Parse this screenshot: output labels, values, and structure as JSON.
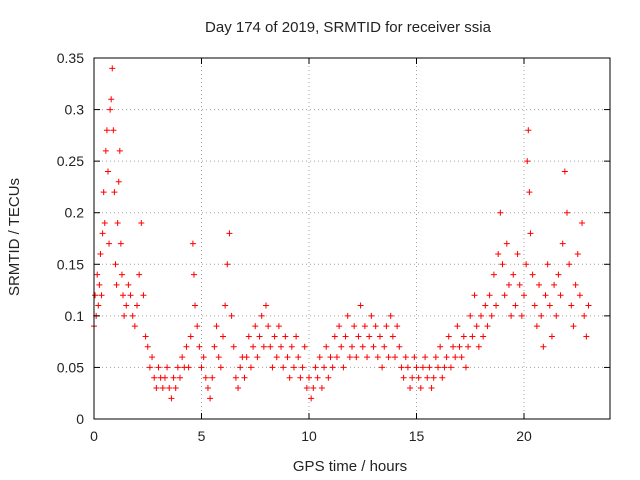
{
  "chart_data": {
    "type": "scatter",
    "title": "Day 174 of 2019, SRMTID for receiver ssia",
    "xlabel": "GPS time / hours",
    "ylabel": "SRMTID / TECUs",
    "xlim": [
      0,
      24
    ],
    "ylim": [
      0,
      0.35
    ],
    "grid": true,
    "marker": "plus",
    "x_ticks": [
      0,
      5,
      10,
      15,
      20
    ],
    "x_tick_labels": [
      "0",
      "5",
      "10",
      "15",
      "20"
    ],
    "y_ticks": [
      0,
      0.05,
      0.1,
      0.15,
      0.2,
      0.25,
      0.3,
      0.35
    ],
    "y_tick_labels": [
      "0",
      "0.05",
      "0.1",
      "0.15",
      "0.2",
      "0.25",
      "0.3",
      "0.35"
    ],
    "series": [
      {
        "name": "SRMTID",
        "color": "#ff0000",
        "points": [
          [
            0.0,
            0.09
          ],
          [
            0.05,
            0.12
          ],
          [
            0.1,
            0.1
          ],
          [
            0.15,
            0.14
          ],
          [
            0.2,
            0.11
          ],
          [
            0.25,
            0.13
          ],
          [
            0.3,
            0.16
          ],
          [
            0.35,
            0.12
          ],
          [
            0.4,
            0.18
          ],
          [
            0.45,
            0.22
          ],
          [
            0.5,
            0.19
          ],
          [
            0.55,
            0.26
          ],
          [
            0.6,
            0.28
          ],
          [
            0.65,
            0.24
          ],
          [
            0.7,
            0.17
          ],
          [
            0.75,
            0.3
          ],
          [
            0.8,
            0.31
          ],
          [
            0.85,
            0.34
          ],
          [
            0.9,
            0.28
          ],
          [
            0.95,
            0.22
          ],
          [
            1.0,
            0.15
          ],
          [
            1.05,
            0.13
          ],
          [
            1.1,
            0.19
          ],
          [
            1.15,
            0.23
          ],
          [
            1.2,
            0.26
          ],
          [
            1.25,
            0.17
          ],
          [
            1.3,
            0.14
          ],
          [
            1.35,
            0.12
          ],
          [
            1.4,
            0.1
          ],
          [
            1.5,
            0.11
          ],
          [
            1.6,
            0.13
          ],
          [
            1.7,
            0.12
          ],
          [
            1.8,
            0.1
          ],
          [
            1.9,
            0.09
          ],
          [
            2.0,
            0.11
          ],
          [
            2.1,
            0.14
          ],
          [
            2.2,
            0.19
          ],
          [
            2.3,
            0.12
          ],
          [
            2.4,
            0.08
          ],
          [
            2.5,
            0.07
          ],
          [
            2.6,
            0.05
          ],
          [
            2.7,
            0.06
          ],
          [
            2.8,
            0.04
          ],
          [
            2.9,
            0.03
          ],
          [
            3.0,
            0.05
          ],
          [
            3.1,
            0.04
          ],
          [
            3.2,
            0.03
          ],
          [
            3.3,
            0.04
          ],
          [
            3.4,
            0.05
          ],
          [
            3.5,
            0.03
          ],
          [
            3.6,
            0.02
          ],
          [
            3.7,
            0.04
          ],
          [
            3.8,
            0.03
          ],
          [
            3.9,
            0.05
          ],
          [
            4.0,
            0.04
          ],
          [
            4.1,
            0.06
          ],
          [
            4.2,
            0.05
          ],
          [
            4.3,
            0.07
          ],
          [
            4.4,
            0.05
          ],
          [
            4.5,
            0.08
          ],
          [
            4.6,
            0.17
          ],
          [
            4.65,
            0.14
          ],
          [
            4.7,
            0.11
          ],
          [
            4.8,
            0.09
          ],
          [
            4.9,
            0.07
          ],
          [
            5.0,
            0.05
          ],
          [
            5.1,
            0.06
          ],
          [
            5.2,
            0.04
          ],
          [
            5.3,
            0.03
          ],
          [
            5.4,
            0.02
          ],
          [
            5.5,
            0.04
          ],
          [
            5.6,
            0.07
          ],
          [
            5.7,
            0.09
          ],
          [
            5.8,
            0.06
          ],
          [
            5.9,
            0.05
          ],
          [
            6.0,
            0.08
          ],
          [
            6.1,
            0.11
          ],
          [
            6.2,
            0.15
          ],
          [
            6.3,
            0.18
          ],
          [
            6.4,
            0.1
          ],
          [
            6.5,
            0.07
          ],
          [
            6.6,
            0.04
          ],
          [
            6.7,
            0.03
          ],
          [
            6.8,
            0.05
          ],
          [
            6.9,
            0.06
          ],
          [
            7.0,
            0.04
          ],
          [
            7.1,
            0.06
          ],
          [
            7.2,
            0.08
          ],
          [
            7.3,
            0.05
          ],
          [
            7.4,
            0.07
          ],
          [
            7.5,
            0.09
          ],
          [
            7.6,
            0.06
          ],
          [
            7.7,
            0.08
          ],
          [
            7.8,
            0.1
          ],
          [
            7.9,
            0.07
          ],
          [
            8.0,
            0.11
          ],
          [
            8.1,
            0.09
          ],
          [
            8.2,
            0.07
          ],
          [
            8.3,
            0.05
          ],
          [
            8.4,
            0.08
          ],
          [
            8.5,
            0.06
          ],
          [
            8.6,
            0.09
          ],
          [
            8.7,
            0.07
          ],
          [
            8.8,
            0.05
          ],
          [
            8.9,
            0.08
          ],
          [
            9.0,
            0.06
          ],
          [
            9.1,
            0.04
          ],
          [
            9.2,
            0.07
          ],
          [
            9.3,
            0.05
          ],
          [
            9.4,
            0.08
          ],
          [
            9.5,
            0.06
          ],
          [
            9.6,
            0.04
          ],
          [
            9.7,
            0.05
          ],
          [
            9.8,
            0.07
          ],
          [
            9.9,
            0.03
          ],
          [
            10.0,
            0.04
          ],
          [
            10.1,
            0.02
          ],
          [
            10.2,
            0.03
          ],
          [
            10.3,
            0.05
          ],
          [
            10.4,
            0.04
          ],
          [
            10.5,
            0.06
          ],
          [
            10.6,
            0.03
          ],
          [
            10.7,
            0.05
          ],
          [
            10.8,
            0.07
          ],
          [
            10.9,
            0.04
          ],
          [
            11.0,
            0.06
          ],
          [
            11.1,
            0.05
          ],
          [
            11.2,
            0.08
          ],
          [
            11.3,
            0.06
          ],
          [
            11.4,
            0.09
          ],
          [
            11.5,
            0.07
          ],
          [
            11.6,
            0.05
          ],
          [
            11.7,
            0.08
          ],
          [
            11.8,
            0.1
          ],
          [
            11.9,
            0.06
          ],
          [
            12.0,
            0.07
          ],
          [
            12.1,
            0.09
          ],
          [
            12.2,
            0.06
          ],
          [
            12.3,
            0.08
          ],
          [
            12.4,
            0.11
          ],
          [
            12.5,
            0.07
          ],
          [
            12.6,
            0.09
          ],
          [
            12.7,
            0.06
          ],
          [
            12.8,
            0.08
          ],
          [
            12.9,
            0.1
          ],
          [
            13.0,
            0.07
          ],
          [
            13.1,
            0.09
          ],
          [
            13.2,
            0.06
          ],
          [
            13.3,
            0.08
          ],
          [
            13.4,
            0.05
          ],
          [
            13.5,
            0.07
          ],
          [
            13.6,
            0.09
          ],
          [
            13.7,
            0.06
          ],
          [
            13.8,
            0.1
          ],
          [
            13.9,
            0.08
          ],
          [
            14.0,
            0.06
          ],
          [
            14.1,
            0.09
          ],
          [
            14.2,
            0.07
          ],
          [
            14.3,
            0.05
          ],
          [
            14.4,
            0.04
          ],
          [
            14.5,
            0.06
          ],
          [
            14.6,
            0.05
          ],
          [
            14.7,
            0.03
          ],
          [
            14.8,
            0.04
          ],
          [
            14.9,
            0.06
          ],
          [
            15.0,
            0.05
          ],
          [
            15.1,
            0.04
          ],
          [
            15.2,
            0.03
          ],
          [
            15.3,
            0.05
          ],
          [
            15.4,
            0.06
          ],
          [
            15.5,
            0.04
          ],
          [
            15.6,
            0.05
          ],
          [
            15.7,
            0.03
          ],
          [
            15.8,
            0.04
          ],
          [
            15.9,
            0.06
          ],
          [
            16.0,
            0.05
          ],
          [
            16.1,
            0.07
          ],
          [
            16.2,
            0.04
          ],
          [
            16.3,
            0.05
          ],
          [
            16.4,
            0.06
          ],
          [
            16.5,
            0.08
          ],
          [
            16.6,
            0.05
          ],
          [
            16.7,
            0.07
          ],
          [
            16.8,
            0.06
          ],
          [
            16.9,
            0.09
          ],
          [
            17.0,
            0.07
          ],
          [
            17.1,
            0.06
          ],
          [
            17.2,
            0.08
          ],
          [
            17.3,
            0.05
          ],
          [
            17.4,
            0.07
          ],
          [
            17.5,
            0.1
          ],
          [
            17.6,
            0.08
          ],
          [
            17.7,
            0.12
          ],
          [
            17.8,
            0.09
          ],
          [
            17.9,
            0.07
          ],
          [
            18.0,
            0.1
          ],
          [
            18.1,
            0.08
          ],
          [
            18.2,
            0.11
          ],
          [
            18.3,
            0.09
          ],
          [
            18.4,
            0.12
          ],
          [
            18.5,
            0.1
          ],
          [
            18.6,
            0.14
          ],
          [
            18.7,
            0.11
          ],
          [
            18.8,
            0.16
          ],
          [
            18.9,
            0.2
          ],
          [
            19.0,
            0.15
          ],
          [
            19.1,
            0.12
          ],
          [
            19.2,
            0.17
          ],
          [
            19.3,
            0.13
          ],
          [
            19.4,
            0.1
          ],
          [
            19.5,
            0.14
          ],
          [
            19.6,
            0.11
          ],
          [
            19.7,
            0.16
          ],
          [
            19.8,
            0.13
          ],
          [
            19.9,
            0.1
          ],
          [
            20.0,
            0.12
          ],
          [
            20.1,
            0.15
          ],
          [
            20.15,
            0.25
          ],
          [
            20.2,
            0.28
          ],
          [
            20.25,
            0.22
          ],
          [
            20.3,
            0.18
          ],
          [
            20.4,
            0.14
          ],
          [
            20.5,
            0.11
          ],
          [
            20.6,
            0.09
          ],
          [
            20.7,
            0.13
          ],
          [
            20.8,
            0.1
          ],
          [
            20.9,
            0.07
          ],
          [
            21.0,
            0.12
          ],
          [
            21.1,
            0.15
          ],
          [
            21.2,
            0.11
          ],
          [
            21.3,
            0.08
          ],
          [
            21.4,
            0.13
          ],
          [
            21.5,
            0.1
          ],
          [
            21.6,
            0.14
          ],
          [
            21.7,
            0.12
          ],
          [
            21.8,
            0.17
          ],
          [
            21.9,
            0.24
          ],
          [
            22.0,
            0.2
          ],
          [
            22.1,
            0.15
          ],
          [
            22.2,
            0.11
          ],
          [
            22.3,
            0.09
          ],
          [
            22.4,
            0.13
          ],
          [
            22.5,
            0.16
          ],
          [
            22.6,
            0.12
          ],
          [
            22.7,
            0.19
          ],
          [
            22.8,
            0.1
          ],
          [
            22.9,
            0.08
          ],
          [
            23.0,
            0.11
          ]
        ]
      }
    ]
  }
}
